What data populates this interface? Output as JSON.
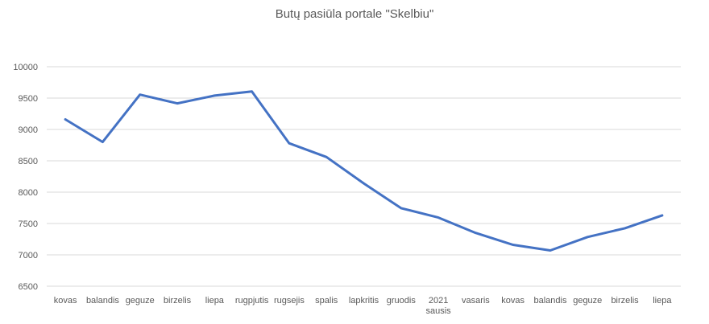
{
  "chart_data": {
    "type": "line",
    "title": "Butų pasiūla portale \"Skelbiu\"",
    "xlabel": "",
    "ylabel": "",
    "ylim": [
      6500,
      10000
    ],
    "yticks": [
      "6500",
      "7000",
      "7500",
      "8000",
      "8500",
      "9000",
      "9500",
      "10000"
    ],
    "grid": true,
    "legend": "none",
    "categories": [
      [
        "kovas"
      ],
      [
        "balandis"
      ],
      [
        "geguze"
      ],
      [
        "birzelis"
      ],
      [
        "liepa"
      ],
      [
        "rugpjutis"
      ],
      [
        "rugsejis"
      ],
      [
        "spalis"
      ],
      [
        "lapkritis"
      ],
      [
        "gruodis"
      ],
      [
        "2021",
        "sausis"
      ],
      [
        "vasaris"
      ],
      [
        "kovas"
      ],
      [
        "balandis"
      ],
      [
        "geguze"
      ],
      [
        "birzelis"
      ],
      [
        "liepa"
      ]
    ],
    "series": [
      {
        "values": [
          9160,
          8800,
          9555,
          9415,
          9540,
          9605,
          8780,
          8560,
          8140,
          7745,
          7595,
          7350,
          7160,
          7070,
          7285,
          7425,
          7630
        ],
        "color": "#4472c4"
      }
    ]
  }
}
